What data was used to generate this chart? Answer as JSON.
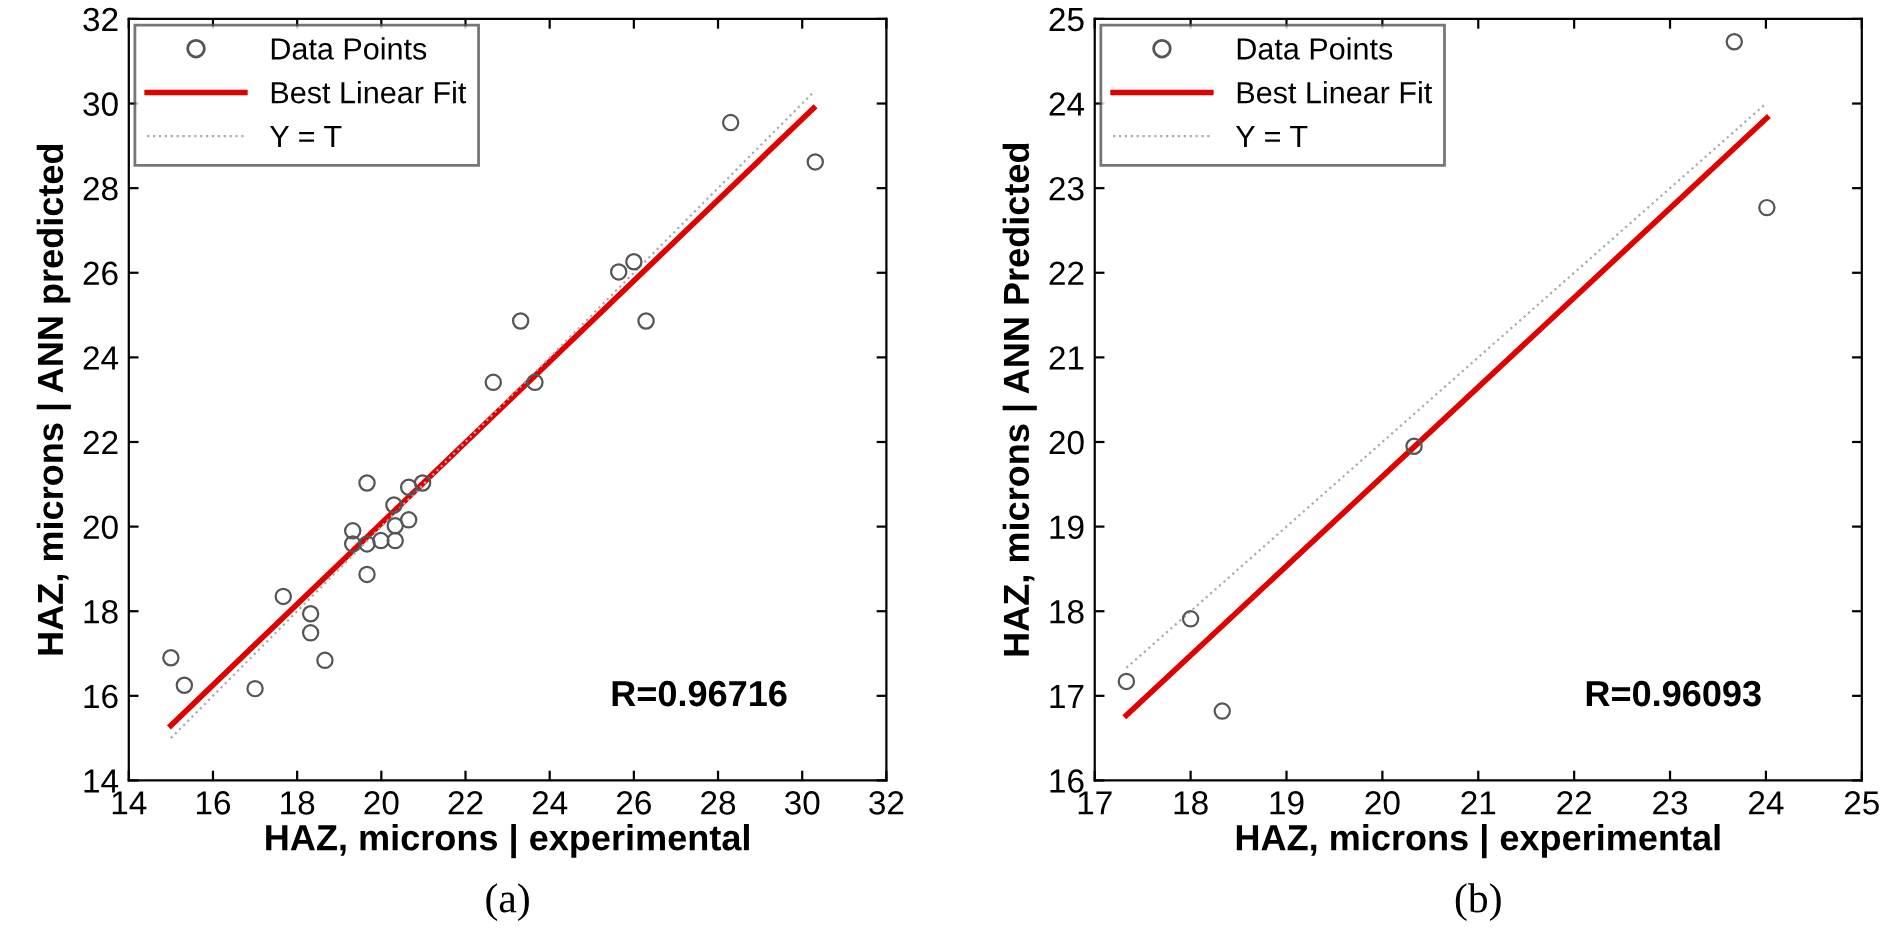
{
  "chart_data": [
    {
      "type": "scatter",
      "xlabel": "HAZ, microns | experimental",
      "ylabel": "HAZ, microns | ANN predicted",
      "annotations": [
        "R=0.96716",
        "(a)"
      ],
      "xlim": [
        14,
        32
      ],
      "ylim": [
        14,
        32
      ],
      "xticks": [
        14,
        16,
        18,
        20,
        22,
        24,
        26,
        28,
        30,
        32
      ],
      "yticks": [
        14,
        16,
        18,
        20,
        22,
        24,
        26,
        28,
        30,
        32
      ],
      "grid": false,
      "legend": "top left",
      "series": [
        {
          "name": "Data Points",
          "color": "#555555",
          "marker": "circle",
          "x": [
            15.0,
            15.32,
            17.0,
            17.67,
            18.32,
            18.32,
            18.66,
            19.32,
            19.32,
            19.66,
            19.66,
            19.66,
            19.99,
            20.33,
            20.33,
            20.3,
            20.65,
            20.65,
            20.98,
            22.66,
            23.65,
            23.31,
            25.64,
            26.0,
            26.29,
            28.3,
            30.31
          ],
          "values": [
            16.9,
            16.25,
            16.17,
            18.35,
            17.94,
            17.49,
            16.84,
            19.9,
            19.59,
            21.03,
            19.59,
            18.87,
            19.67,
            19.67,
            20.02,
            20.51,
            20.16,
            20.93,
            21.03,
            23.41,
            23.41,
            24.86,
            26.02,
            26.26,
            24.86,
            29.55,
            28.62
          ]
        },
        {
          "name": "Best Linear Fit",
          "type": "line",
          "color": "#e00000",
          "line_style": "solid",
          "x": [
            15.0,
            30.27
          ],
          "values": [
            15.3,
            29.89
          ]
        },
        {
          "name": "Y = T",
          "type": "line",
          "color": "#aaaaaa",
          "line_style": "dotted",
          "x": [
            15.0,
            30.3
          ],
          "values": [
            15.0,
            30.3
          ]
        }
      ]
    },
    {
      "type": "scatter",
      "xlabel": "HAZ, microns | experimental",
      "ylabel": "HAZ, microns | ANN Predicted",
      "annotations": [
        "R=0.96093",
        "(b)"
      ],
      "xlim": [
        17,
        25
      ],
      "ylim": [
        16,
        25
      ],
      "xticks": [
        17,
        18,
        19,
        20,
        21,
        22,
        23,
        24,
        25
      ],
      "yticks": [
        16,
        17,
        18,
        19,
        20,
        21,
        22,
        23,
        24,
        25
      ],
      "grid": false,
      "legend": "top left",
      "series": [
        {
          "name": "Data Points",
          "color": "#555555",
          "marker": "circle",
          "x": [
            17.33,
            18.0,
            18.33,
            20.33,
            23.67,
            24.01
          ],
          "values": [
            17.17,
            17.91,
            16.82,
            19.95,
            24.73,
            22.77
          ]
        },
        {
          "name": "Best Linear Fit",
          "type": "line",
          "color": "#e00000",
          "line_style": "solid",
          "x": [
            17.33,
            24.01
          ],
          "values": [
            16.77,
            23.83
          ]
        },
        {
          "name": "Y = T",
          "type": "line",
          "color": "#aaaaaa",
          "line_style": "dotted",
          "x": [
            17.33,
            24.0
          ],
          "values": [
            17.33,
            24.0
          ]
        }
      ]
    }
  ]
}
